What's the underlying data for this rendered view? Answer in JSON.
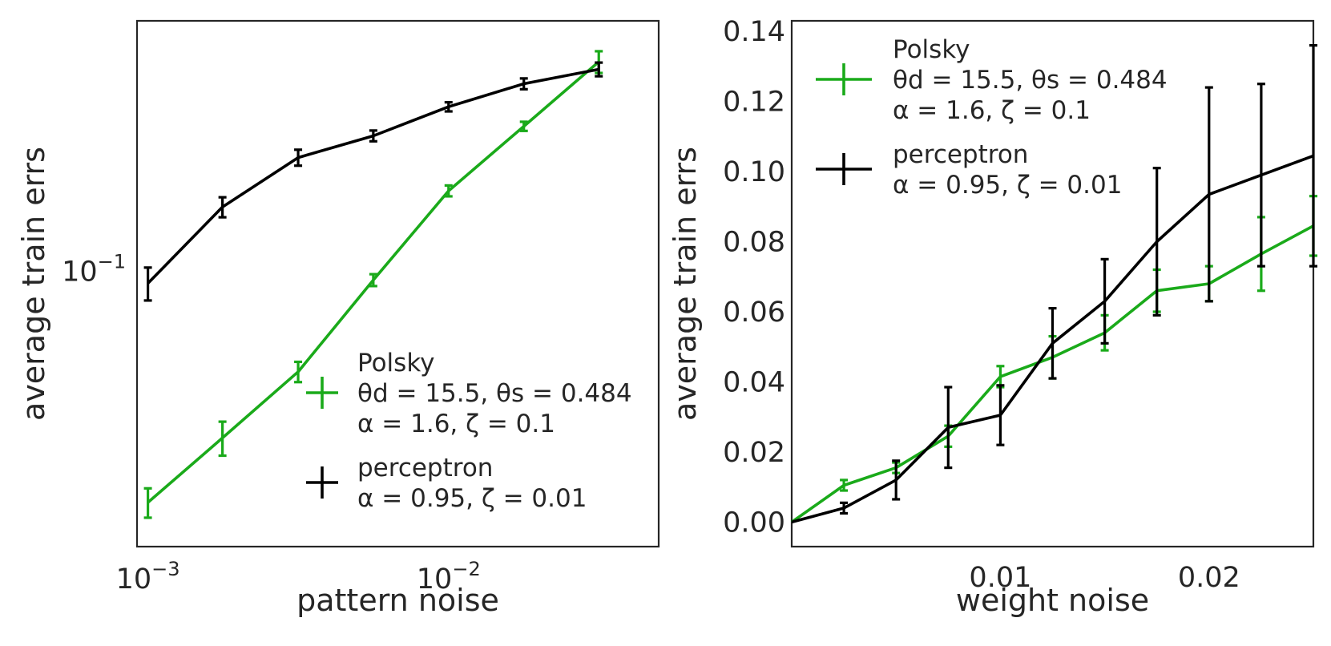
{
  "chart_data": [
    {
      "type": "line",
      "xscale": "log",
      "yscale": "log",
      "xlabel": "pattern noise",
      "ylabel": "average train errs",
      "xlim": [
        0.00092,
        0.05
      ],
      "ylim": [
        0.0245,
        0.36
      ],
      "xticks": [
        {
          "value": 0.001,
          "base": "10",
          "exp": "−3"
        },
        {
          "value": 0.01,
          "base": "10",
          "exp": "−2"
        }
      ],
      "yticks": [
        {
          "value": 0.1,
          "base": "10",
          "exp": "−1"
        }
      ],
      "series": [
        {
          "name": "Polsky",
          "color": "#1aaa1a",
          "x": [
            0.001,
            0.00177,
            0.00316,
            0.00562,
            0.01,
            0.0178,
            0.0316
          ],
          "y": [
            0.0307,
            0.0427,
            0.0599,
            0.0957,
            0.151,
            0.21,
            0.292
          ],
          "yerr": [
            0.0023,
            0.0037,
            0.0031,
            0.0029,
            0.0042,
            0.0049,
            0.0162
          ]
        },
        {
          "name": "perceptron",
          "color": "#000000",
          "x": [
            0.001,
            0.00177,
            0.00316,
            0.00562,
            0.01,
            0.0178,
            0.0316
          ],
          "y": [
            0.0941,
            0.139,
            0.179,
            0.2,
            0.232,
            0.261,
            0.281
          ],
          "yerr": [
            0.0079,
            0.0071,
            0.0073,
            0.0055,
            0.0054,
            0.0072,
            0.0098
          ]
        }
      ],
      "legend": {
        "position": "lower-right",
        "entries": [
          {
            "series": "Polsky",
            "lines": [
              "Polsky",
              "θd = 15.5, θs = 0.484",
              "α = 1.6, ζ = 0.1"
            ]
          },
          {
            "series": "perceptron",
            "lines": [
              "perceptron",
              "α = 0.95, ζ = 0.01"
            ]
          }
        ]
      }
    },
    {
      "type": "line",
      "xscale": "linear",
      "yscale": "linear",
      "xlabel": "weight noise",
      "ylabel": "average train errs",
      "xlim": [
        0.0,
        0.025
      ],
      "ylim": [
        -0.007,
        0.143
      ],
      "xticks": [
        {
          "value": 0.01,
          "label": "0.01"
        },
        {
          "value": 0.02,
          "label": "0.02"
        }
      ],
      "yticks": [
        {
          "value": 0.0,
          "label": "0.00"
        },
        {
          "value": 0.02,
          "label": "0.02"
        },
        {
          "value": 0.04,
          "label": "0.04"
        },
        {
          "value": 0.06,
          "label": "0.06"
        },
        {
          "value": 0.08,
          "label": "0.08"
        },
        {
          "value": 0.1,
          "label": "0.10"
        },
        {
          "value": 0.12,
          "label": "0.12"
        },
        {
          "value": 0.14,
          "label": "0.14"
        }
      ],
      "series": [
        {
          "name": "Polsky",
          "color": "#1aaa1a",
          "x": [
            0.0,
            0.0025,
            0.005,
            0.0075,
            0.01,
            0.0125,
            0.015,
            0.0175,
            0.02,
            0.0225,
            0.025
          ],
          "y": [
            0.0,
            0.0105,
            0.0155,
            0.0245,
            0.0415,
            0.047,
            0.054,
            0.066,
            0.068,
            0.0765,
            0.0845
          ],
          "yerr": [
            0.0,
            0.0015,
            0.0015,
            0.003,
            0.003,
            0.006,
            0.005,
            0.006,
            0.005,
            0.0105,
            0.0085
          ]
        },
        {
          "name": "perceptron",
          "color": "#000000",
          "x": [
            0.0,
            0.0025,
            0.005,
            0.0075,
            0.01,
            0.0125,
            0.015,
            0.0175,
            0.02,
            0.0225,
            0.025
          ],
          "y": [
            0.0,
            0.004,
            0.012,
            0.027,
            0.0305,
            0.051,
            0.063,
            0.08,
            0.0935,
            0.099,
            0.1045
          ],
          "yerr": [
            0.0,
            0.0015,
            0.0055,
            0.0115,
            0.0085,
            0.01,
            0.012,
            0.021,
            0.0305,
            0.026,
            0.0315
          ]
        }
      ],
      "legend": {
        "position": "top-left",
        "entries": [
          {
            "series": "Polsky",
            "lines": [
              "Polsky",
              "θd = 15.5, θs = 0.484",
              "α = 1.6, ζ = 0.1"
            ]
          },
          {
            "series": "perceptron",
            "lines": [
              "perceptron",
              "α = 0.95, ζ = 0.01"
            ]
          }
        ]
      }
    }
  ]
}
